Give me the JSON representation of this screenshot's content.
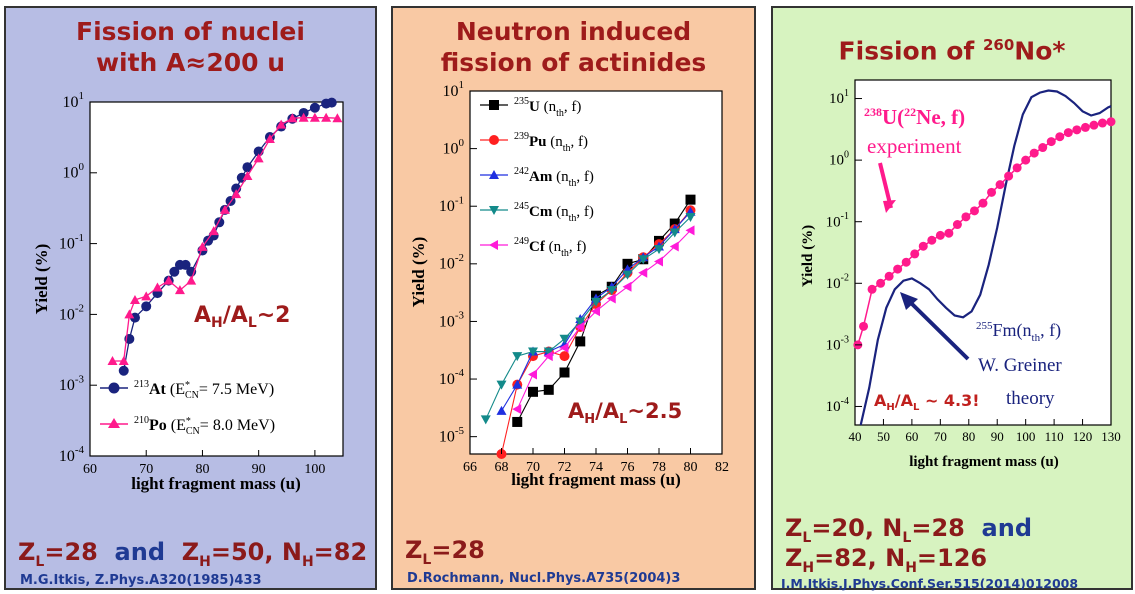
{
  "panels": [
    {
      "title_lines": [
        "Fission of nuclei",
        "with A≈200 u"
      ],
      "ratio_label": "AH/AL~2",
      "bottom": {
        "zl": "ZL=28",
        "and": "and",
        "zh": "ZH=50, NH=82"
      },
      "reference": "M.G.Itkis, Z.Phys.A320(1985)433"
    },
    {
      "title_lines": [
        "Neutron induced",
        "fission of actinides"
      ],
      "ratio_label": "AH/AL~2.5",
      "bottom": {
        "zl": "ZL=28"
      },
      "reference": "D.Rochmann, Nucl.Phys.A735(2004)3"
    },
    {
      "title_lines": [
        "Fission of 260No*"
      ],
      "ratio_label": "AH/AL ~ 4.3!",
      "bottom": {
        "line1": "ZL=20, NL=28",
        "and": "and",
        "line2": "ZH=82, NH=126"
      },
      "reference": "I.M.Itkis,J.Phys.Conf.Ser.515(2014)012008",
      "annotations": {
        "reaction": "238U(22Ne, f)",
        "experiment": "experiment",
        "fm": "255Fm(nth, f)",
        "greiner": "W. Greiner",
        "theory": "theory"
      }
    }
  ],
  "colors": {
    "title_red": "#9e1b1b",
    "navy": "#1a237e",
    "magenta": "#ff1a8c",
    "ref_blue": "#1f3a93"
  },
  "chart_data": [
    {
      "type": "line",
      "xlabel": "light fragment mass (u)",
      "ylabel": "Yield (%)",
      "xlim": [
        60,
        105
      ],
      "ylim": [
        0.0001,
        10
      ],
      "yscale": "log",
      "xticks": [
        60,
        70,
        80,
        90,
        100
      ],
      "legend_position": "bottom-right",
      "series": [
        {
          "name": "213At (E*CN= 7.5 MeV)",
          "color": "#1a237e",
          "marker": "circle",
          "x": [
            66,
            67,
            68,
            70,
            72,
            74,
            75,
            76,
            77,
            78,
            80,
            81,
            82,
            83,
            84,
            85,
            86,
            87,
            88,
            90,
            92,
            94,
            96,
            98,
            100,
            102,
            103
          ],
          "y": [
            0.0016,
            0.0045,
            0.009,
            0.013,
            0.02,
            0.03,
            0.04,
            0.05,
            0.05,
            0.04,
            0.08,
            0.11,
            0.13,
            0.2,
            0.3,
            0.4,
            0.6,
            0.85,
            1.2,
            2.0,
            3.2,
            4.5,
            5.8,
            7.0,
            8.3,
            9.5,
            9.8
          ]
        },
        {
          "name": "210Po (E*CN= 8.0 MeV)",
          "color": "#ff1a8c",
          "marker": "triangle",
          "x": [
            64,
            66,
            67,
            68,
            70,
            72,
            74,
            76,
            78,
            80,
            82,
            84,
            86,
            88,
            90,
            92,
            94,
            96,
            98,
            100,
            102,
            104
          ],
          "y": [
            0.0022,
            0.0022,
            0.01,
            0.016,
            0.018,
            0.024,
            0.03,
            0.022,
            0.03,
            0.09,
            0.15,
            0.3,
            0.5,
            0.9,
            1.6,
            3.0,
            4.8,
            5.9,
            6.0,
            6.0,
            6.0,
            5.9
          ]
        }
      ]
    },
    {
      "type": "line",
      "xlabel": "light fragment mass (u)",
      "ylabel": "Yield (%)",
      "xlim": [
        66,
        82
      ],
      "ylim": [
        5e-06,
        10
      ],
      "yscale": "log",
      "xticks": [
        66,
        68,
        70,
        72,
        74,
        76,
        78,
        80,
        82
      ],
      "legend_position": "top-left",
      "series": [
        {
          "name": "235U (nth, f)",
          "color": "#000000",
          "marker": "square",
          "x": [
            69,
            70,
            71,
            72,
            73,
            74,
            75,
            76,
            77,
            78,
            79,
            80
          ],
          "y": [
            1.8e-05,
            6e-05,
            6.5e-05,
            0.00013,
            0.00045,
            0.0028,
            0.004,
            0.01,
            0.012,
            0.025,
            0.05,
            0.13
          ]
        },
        {
          "name": "239Pu (nth, f)",
          "color": "#ff2020",
          "marker": "circle",
          "x": [
            68,
            69,
            70,
            71,
            72,
            73,
            74,
            75,
            76,
            77,
            78,
            79,
            80
          ],
          "y": [
            5e-06,
            8e-05,
            0.00025,
            0.0003,
            0.00025,
            0.0008,
            0.002,
            0.0035,
            0.007,
            0.013,
            0.022,
            0.04,
            0.085
          ]
        },
        {
          "name": "242Am (nth, f)",
          "color": "#1f2fe0",
          "marker": "triangle-up",
          "x": [
            68,
            69,
            70,
            71,
            72,
            73,
            74,
            75,
            76,
            77,
            78,
            79,
            80
          ],
          "y": [
            2.8e-05,
            8e-05,
            0.0003,
            0.0003,
            0.0004,
            0.0011,
            0.0025,
            0.004,
            0.008,
            0.013,
            0.02,
            0.04,
            0.08
          ]
        },
        {
          "name": "245Cm (nth, f)",
          "color": "#138a8a",
          "marker": "triangle-down",
          "x": [
            67,
            68,
            69,
            70,
            71,
            72,
            73,
            74,
            75,
            76,
            77,
            78,
            79,
            80
          ],
          "y": [
            2e-05,
            8e-05,
            0.00025,
            0.0003,
            0.0003,
            0.0005,
            0.001,
            0.0022,
            0.0035,
            0.0065,
            0.012,
            0.018,
            0.035,
            0.065
          ]
        },
        {
          "name": "249Cf (nth, f)",
          "color": "#ff1ad9",
          "marker": "triangle-left",
          "x": [
            69,
            70,
            71,
            72,
            73,
            74,
            75,
            76,
            77,
            78,
            79,
            80
          ],
          "y": [
            3e-05,
            0.00012,
            0.00025,
            0.00035,
            0.0008,
            0.0015,
            0.0025,
            0.004,
            0.007,
            0.011,
            0.02,
            0.038
          ]
        }
      ]
    },
    {
      "type": "line",
      "xlabel": "light fragment mass (u)",
      "ylabel": "Yield (%)",
      "xlim": [
        40,
        130
      ],
      "ylim": [
        5e-05,
        20
      ],
      "yscale": "log",
      "xticks": [
        40,
        50,
        60,
        70,
        80,
        90,
        100,
        110,
        120,
        130
      ],
      "series": [
        {
          "name": "experiment",
          "color": "#ff1a8c",
          "marker": "circle",
          "x": [
            41,
            43,
            46,
            49,
            52,
            55,
            58,
            61,
            64,
            67,
            70,
            73,
            76,
            79,
            82,
            85,
            88,
            91,
            94,
            97,
            100,
            103,
            106,
            109,
            112,
            115,
            118,
            121,
            124,
            127,
            130
          ],
          "y": [
            0.001,
            0.002,
            0.008,
            0.01,
            0.013,
            0.017,
            0.022,
            0.03,
            0.04,
            0.05,
            0.06,
            0.065,
            0.09,
            0.12,
            0.15,
            0.2,
            0.3,
            0.4,
            0.55,
            0.75,
            1.0,
            1.3,
            1.6,
            2.0,
            2.4,
            2.8,
            3.1,
            3.4,
            3.7,
            4.0,
            4.2
          ]
        },
        {
          "name": "W. Greiner theory",
          "color": "#1a237e",
          "marker": "none",
          "x": [
            42,
            45,
            48,
            51,
            54,
            57,
            60,
            63,
            66,
            69,
            72,
            75,
            78,
            81,
            84,
            87,
            90,
            93,
            96,
            99,
            102,
            105,
            108,
            111,
            114,
            117,
            120,
            123,
            126,
            129,
            130
          ],
          "y": [
            5e-05,
            0.0002,
            0.0012,
            0.004,
            0.008,
            0.011,
            0.012,
            0.01,
            0.008,
            0.0055,
            0.004,
            0.003,
            0.0028,
            0.0035,
            0.0065,
            0.02,
            0.08,
            0.4,
            1.7,
            5.5,
            10.5,
            12.5,
            13.5,
            13.0,
            11.0,
            8.5,
            6.2,
            5.3,
            5.8,
            7.2,
            7.5
          ]
        }
      ]
    }
  ]
}
